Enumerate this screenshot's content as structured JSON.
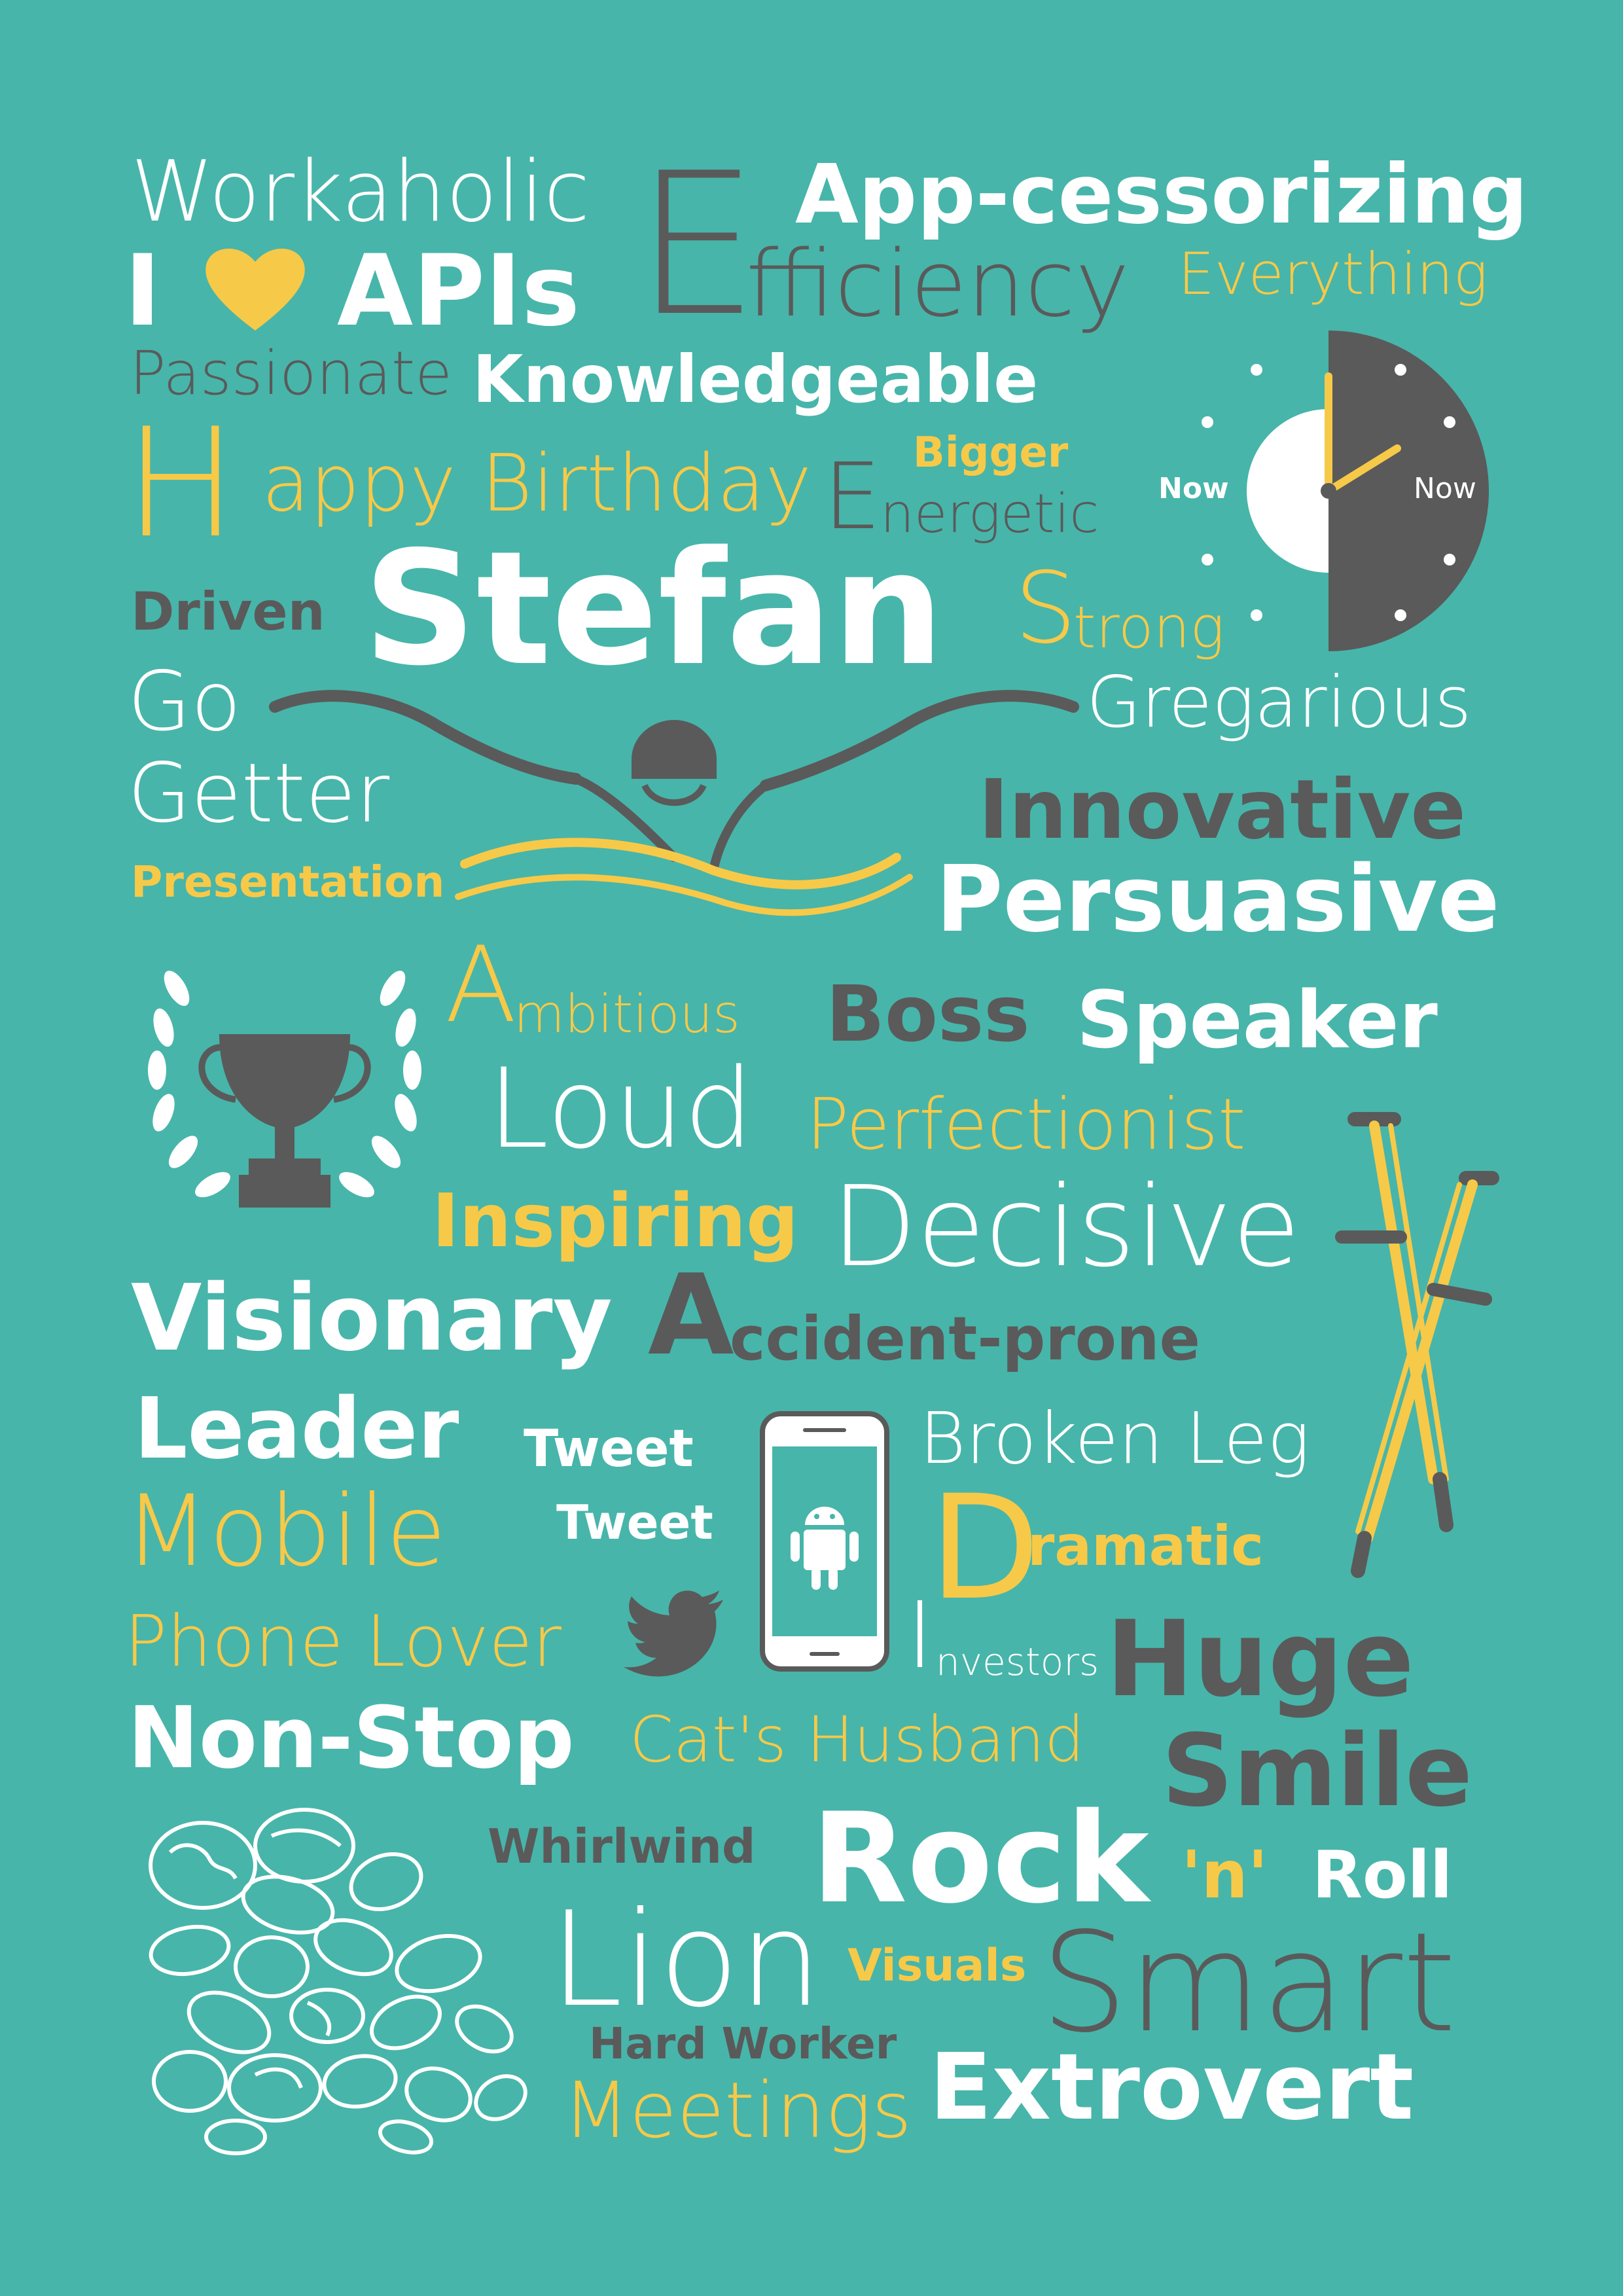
{
  "colors": {
    "background": "#47b5aa",
    "white": "#ffffff",
    "yellow": "#f7c948",
    "grey": "#5a5a5a"
  },
  "words": {
    "workaholic": "Workaholic",
    "i": "I",
    "apis": "APIs",
    "efficiency_initial": "E",
    "efficiency_rest": "fficiency",
    "app_cessorizing": "App-cessorizing",
    "everything": "Everything",
    "passionate": "Passionate",
    "knowledgeable": "Knowledgeable",
    "happy_initial": "H",
    "happy_birthday": "appy Birthday",
    "bigger": "Bigger",
    "energetic_initial": "E",
    "energetic_rest": "nergetic",
    "driven": "Driven",
    "stefan": "Stefan",
    "strong_initial": "S",
    "strong_rest": "trong",
    "go": "Go",
    "getter": "Getter",
    "gregarious": "Gregarious",
    "innovative": "Innovative",
    "presentation": "Presentation",
    "persuasive": "Persuasive",
    "ambitious_initial": "A",
    "ambitious_rest": "mbitious",
    "boss": "Boss",
    "speaker": "Speaker",
    "loud": "Loud",
    "perfectionist": "Perfectionist",
    "inspiring": "Inspiring",
    "decisive": "Decisive",
    "visionary": "Visionary",
    "accident_initial": "A",
    "accident_rest": "ccident-prone",
    "leader": "Leader",
    "tweet1": "Tweet",
    "tweet2": "Tweet",
    "broken_leg": "Broken Leg",
    "mobile": "Mobile",
    "dramatic_initial": "D",
    "dramatic_rest": "ramatic",
    "phone_lover": "Phone Lover",
    "investors_initial": "I",
    "investors_rest": "nvestors",
    "huge": "Huge",
    "non_stop": "Non-Stop",
    "cats_husband": "Cat's Husband",
    "smile": "Smile",
    "whirlwind": "Whirlwind",
    "rock": "Rock",
    "n": "'n'",
    "roll": "Roll",
    "lion": "Lion",
    "visuals": "Visuals",
    "smart": "Smart",
    "hard_worker": "Hard Worker",
    "meetings": "Meetings",
    "extrovert": "Extrovert"
  },
  "clock": {
    "label_left": "Now",
    "label_right": "Now"
  },
  "icons": [
    "heart-icon",
    "clock-icon",
    "swimmer-icon",
    "trophy-laurel-icon",
    "crutches-icon",
    "smartphone-android-icon",
    "twitter-bird-icon",
    "nuts-illustration"
  ]
}
